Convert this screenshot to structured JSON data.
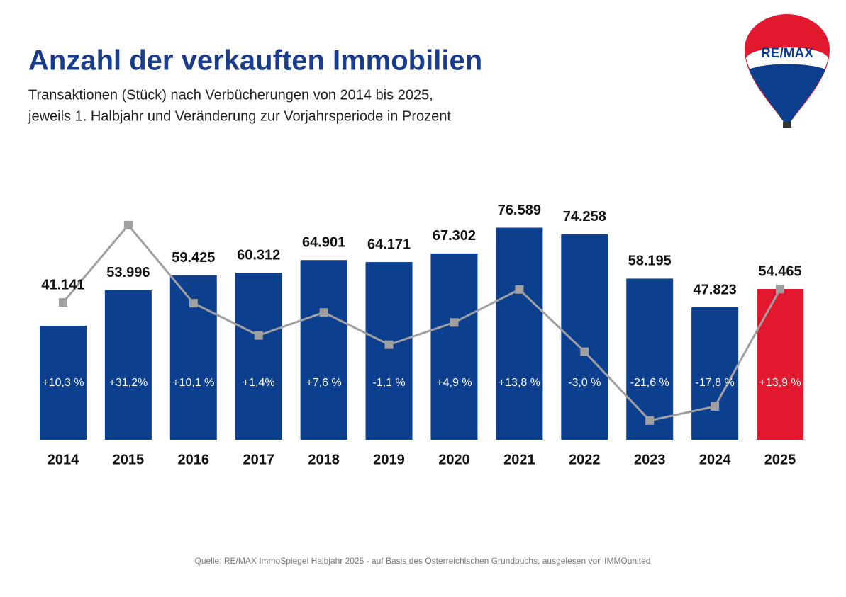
{
  "chart_data": {
    "type": "bar",
    "title": "Anzahl der verkauften Immobilien",
    "subtitle": [
      "Transaktionen (Stück) nach Verbücherungen von 2014 bis 2025,",
      "jeweils 1. Halbjahr und Veränderung zur Vorjahrsperiode in Prozent"
    ],
    "source": "Quelle: RE/MAX ImmoSpiegel Halbjahr 2025 - auf Basis des Österreichischen Grundbuchs, ausgelesen von IMMOunited",
    "logo": "RE/MAX",
    "categories": [
      "2014",
      "2015",
      "2016",
      "2017",
      "2018",
      "2019",
      "2020",
      "2021",
      "2022",
      "2023",
      "2024",
      "2025"
    ],
    "ylim": [
      0,
      100000
    ],
    "y2lim": [
      -26.8,
      48
    ],
    "series": [
      {
        "name": "Transaktionen",
        "type": "bar",
        "color": "#0d3f8f",
        "colors": [
          "#0d3f8f",
          "#0d3f8f",
          "#0d3f8f",
          "#0d3f8f",
          "#0d3f8f",
          "#0d3f8f",
          "#0d3f8f",
          "#0d3f8f",
          "#0d3f8f",
          "#0d3f8f",
          "#0d3f8f",
          "#e1182e"
        ],
        "values": [
          41141,
          53996,
          59425,
          60312,
          64901,
          64171,
          67302,
          76589,
          74258,
          58195,
          47823,
          54465
        ],
        "value_labels": [
          "41.141",
          "53.996",
          "59.425",
          "60.312",
          "64.901",
          "64.171",
          "67.302",
          "76.589",
          "74.258",
          "58.195",
          "47.823",
          "54.465"
        ]
      },
      {
        "name": "Veränderung",
        "type": "line",
        "axis": "y2",
        "color": "#a0a0a0",
        "values": [
          10.3,
          31.2,
          10.1,
          1.4,
          7.6,
          -1.1,
          4.9,
          13.8,
          -3.0,
          -21.6,
          -17.8,
          13.9
        ],
        "value_labels": [
          "+10,3 %",
          "+31,2%",
          "+10,1 %",
          "+1,4%",
          "+7,6 %",
          "-1,1 %",
          "+4,9 %",
          "+13,8 %",
          "-3,0 %",
          "-21,6 %",
          "-17,8 %",
          "+13,9 %"
        ]
      }
    ]
  }
}
